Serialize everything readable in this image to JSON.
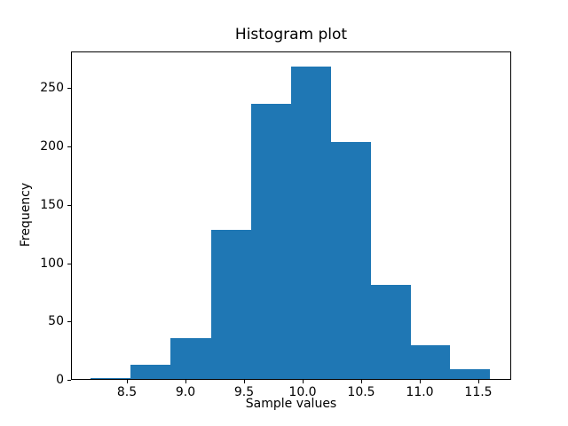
{
  "figure": {
    "title": "Histogram plot",
    "xlabel": "Sample values",
    "ylabel": "Frequency"
  },
  "chart_data": {
    "type": "bar",
    "subtype": "histogram",
    "title": "Histogram plot",
    "xlabel": "Sample values",
    "ylabel": "Frequency",
    "bar_color": "#1f77b4",
    "axis_color": "#000000",
    "background_color": "#ffffff",
    "bin_edges": [
      8.19,
      8.53,
      8.87,
      9.22,
      9.56,
      9.9,
      10.24,
      10.58,
      10.92,
      11.26,
      11.6
    ],
    "counts": [
      1,
      12,
      35,
      128,
      236,
      268,
      203,
      81,
      29,
      8
    ],
    "xlim": [
      8.02,
      11.78
    ],
    "ylim": [
      0,
      281.5
    ],
    "xticks": [
      8.5,
      9.0,
      9.5,
      10.0,
      10.5,
      11.0,
      11.5
    ],
    "xtick_labels": [
      "8.5",
      "9.0",
      "9.5",
      "10.0",
      "10.5",
      "11.0",
      "11.5"
    ],
    "yticks": [
      0,
      50,
      100,
      150,
      200,
      250
    ],
    "ytick_labels": [
      "0",
      "50",
      "100",
      "150",
      "200",
      "250"
    ],
    "grid": false,
    "legend": null
  }
}
